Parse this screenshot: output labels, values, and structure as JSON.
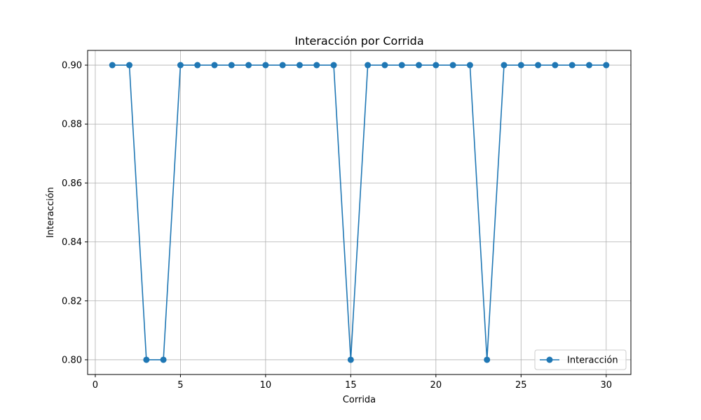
{
  "chart_data": {
    "type": "line",
    "title": "Interacción por Corrida",
    "xlabel": "Corrida",
    "ylabel": "Interacción",
    "xlim": [
      -0.45,
      31.45
    ],
    "ylim": [
      0.795,
      0.905
    ],
    "xticks": [
      0,
      5,
      10,
      15,
      20,
      25,
      30
    ],
    "yticks": [
      0.8,
      0.82,
      0.84,
      0.86,
      0.88,
      0.9
    ],
    "ytick_labels": [
      "0.80",
      "0.82",
      "0.84",
      "0.86",
      "0.88",
      "0.90"
    ],
    "grid": true,
    "legend_position": "lower-right",
    "series": [
      {
        "name": "Interacción",
        "color": "#1f77b4",
        "marker": "circle",
        "x": [
          1,
          2,
          3,
          4,
          5,
          6,
          7,
          8,
          9,
          10,
          11,
          12,
          13,
          14,
          15,
          16,
          17,
          18,
          19,
          20,
          21,
          22,
          23,
          24,
          25,
          26,
          27,
          28,
          29,
          30
        ],
        "values": [
          0.9,
          0.9,
          0.8,
          0.8,
          0.9,
          0.9,
          0.9,
          0.9,
          0.9,
          0.9,
          0.9,
          0.9,
          0.9,
          0.9,
          0.8,
          0.9,
          0.9,
          0.9,
          0.9,
          0.9,
          0.9,
          0.9,
          0.8,
          0.9,
          0.9,
          0.9,
          0.9,
          0.9,
          0.9,
          0.9
        ]
      }
    ]
  }
}
